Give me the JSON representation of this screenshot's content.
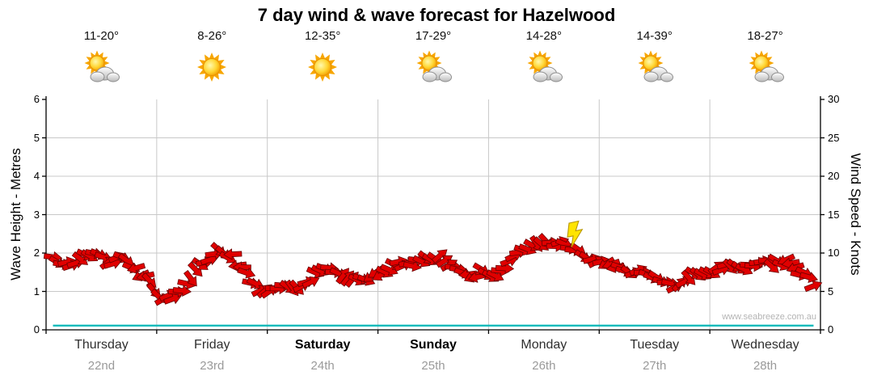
{
  "title": "7 day wind & wave forecast for Hazelwood",
  "watermark": "www.seabreeze.com.au",
  "days": [
    {
      "name": "Thursday",
      "date": "22nd",
      "temp": "11-20°",
      "icon": "sun-cloud",
      "bold": false
    },
    {
      "name": "Friday",
      "date": "23rd",
      "temp": "8-26°",
      "icon": "sun",
      "bold": false
    },
    {
      "name": "Saturday",
      "date": "24th",
      "temp": "12-35°",
      "icon": "sun",
      "bold": true
    },
    {
      "name": "Sunday",
      "date": "25th",
      "temp": "17-29°",
      "icon": "sun-cloud",
      "bold": true
    },
    {
      "name": "Monday",
      "date": "26th",
      "temp": "14-28°",
      "icon": "sun-cloud",
      "bold": false
    },
    {
      "name": "Tuesday",
      "date": "27th",
      "temp": "14-39°",
      "icon": "sun-cloud",
      "bold": false
    },
    {
      "name": "Wednesday",
      "date": "28th",
      "temp": "18-27°",
      "icon": "sun-cloud",
      "bold": false
    }
  ],
  "axes": {
    "left_label": "Wave Height - Metres",
    "right_label": "Wind Speed - Knots",
    "left_ticks": [
      0,
      1,
      2,
      3,
      4,
      5,
      6
    ],
    "right_ticks": [
      0,
      5,
      10,
      15,
      20,
      25,
      30
    ]
  },
  "colors": {
    "arrow": "#e00000",
    "arrow_outline": "#6b0000",
    "wave_line": "#00b7b7",
    "grid": "#c8c8c8",
    "axis": "#000000",
    "lightning_fill": "#ffe400",
    "lightning_stroke": "#b89600"
  },
  "chart_data": {
    "type": "line",
    "title": "7 day wind & wave forecast for Hazelwood",
    "categories": [
      "Thursday 22nd",
      "Friday 23rd",
      "Saturday 24th",
      "Sunday 25th",
      "Monday 26th",
      "Tuesday 27th",
      "Wednesday 28th"
    ],
    "points_per_day": 8,
    "ylim_left_metres": [
      0,
      6
    ],
    "ylim_right_knots": [
      0,
      30
    ],
    "grid": true,
    "legend": "none",
    "series": [
      {
        "name": "Wind Speed (knots)",
        "values": [
          9,
          8.5,
          9.5,
          10,
          8.5,
          9.5,
          8,
          6,
          4,
          4.5,
          6.5,
          9,
          10,
          9.5,
          7,
          5.5,
          5,
          6,
          5.5,
          7,
          8,
          7.5,
          6.5,
          7,
          7.5,
          9,
          8.5,
          9,
          9.5,
          8,
          7,
          7.5,
          7,
          9,
          10.5,
          11,
          11.5,
          11,
          10,
          9,
          8.5,
          8,
          7.5,
          7,
          6.5,
          6,
          7,
          7.5,
          8,
          8.5,
          8,
          9,
          8.5,
          9,
          7.5,
          6
        ]
      },
      {
        "name": "Wind Direction (deg, 0=right)",
        "values": [
          20,
          -15,
          35,
          10,
          -30,
          25,
          160,
          45,
          -20,
          15,
          40,
          -10,
          30,
          170,
          20,
          -35,
          10,
          45,
          -25,
          30,
          15,
          -40,
          25,
          150,
          35,
          -15,
          20,
          40,
          -30,
          10,
          165,
          25,
          15,
          -20,
          30,
          45,
          -10,
          20,
          35,
          -25,
          155,
          30,
          -15,
          25,
          10,
          -35,
          40,
          20,
          -25,
          35,
          15,
          -10,
          30,
          160,
          25,
          -20
        ]
      },
      {
        "name": "Wave Height (m)",
        "values": [
          0.1,
          0.1,
          0.1,
          0.1,
          0.1,
          0.1,
          0.1,
          0.1,
          0.1,
          0.1,
          0.1,
          0.1,
          0.1,
          0.1,
          0.1,
          0.1,
          0.1,
          0.1,
          0.1,
          0.1,
          0.1,
          0.1,
          0.1,
          0.1,
          0.1,
          0.1,
          0.1,
          0.1,
          0.1,
          0.1,
          0.1,
          0.1,
          0.1,
          0.1,
          0.1,
          0.1,
          0.1,
          0.1,
          0.1,
          0.1,
          0.1,
          0.1,
          0.1,
          0.1,
          0.1,
          0.1,
          0.1,
          0.1,
          0.1,
          0.1,
          0.1,
          0.1,
          0.1,
          0.1,
          0.1,
          0.1
        ]
      }
    ],
    "annotations": [
      {
        "type": "lightning",
        "day": "Monday 26th",
        "approx_knots": 12.5
      }
    ]
  }
}
